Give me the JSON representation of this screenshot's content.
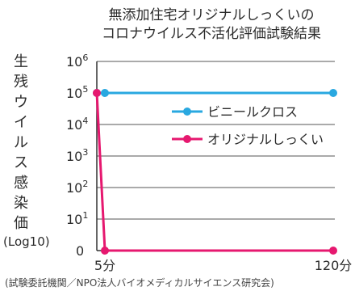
{
  "chart_data": {
    "type": "line",
    "title": [
      "無添加住宅オリジナルしっくいの",
      "コロナウイルス不活化評価試験結果"
    ],
    "ylabel": "生残ウイルス感染価",
    "ylabel_unit": "(Log10)",
    "y_scale": "log10",
    "ylim": [
      0,
      6
    ],
    "y_ticks": [
      {
        "value": 6,
        "base": "10",
        "exp": "6"
      },
      {
        "value": 5,
        "base": "10",
        "exp": "5"
      },
      {
        "value": 4,
        "base": "10",
        "exp": "4"
      },
      {
        "value": 3,
        "base": "10",
        "exp": "3"
      },
      {
        "value": 2,
        "base": "10",
        "exp": "2"
      },
      {
        "value": 1,
        "base": "10",
        "exp": "1"
      },
      {
        "value": 0,
        "base": "0",
        "exp": ""
      }
    ],
    "x_ticks": [
      "5分",
      "120分"
    ],
    "grid": true,
    "legend_position": "middle-right",
    "series": [
      {
        "name": "ビニールクロス",
        "color": "#29a8e0",
        "points": [
          {
            "x": "0分",
            "y": 5
          },
          {
            "x": "5分",
            "y": 5
          },
          {
            "x": "120分",
            "y": 5
          }
        ]
      },
      {
        "name": "オリジナルしっくい",
        "color": "#e6186f",
        "points": [
          {
            "x": "0分",
            "y": 5
          },
          {
            "x": "5分",
            "y": 0
          },
          {
            "x": "120分",
            "y": 0
          }
        ]
      }
    ]
  },
  "source_note": "(試験委託機関／NPO法人バイオメディカルサイエンス研究会)"
}
